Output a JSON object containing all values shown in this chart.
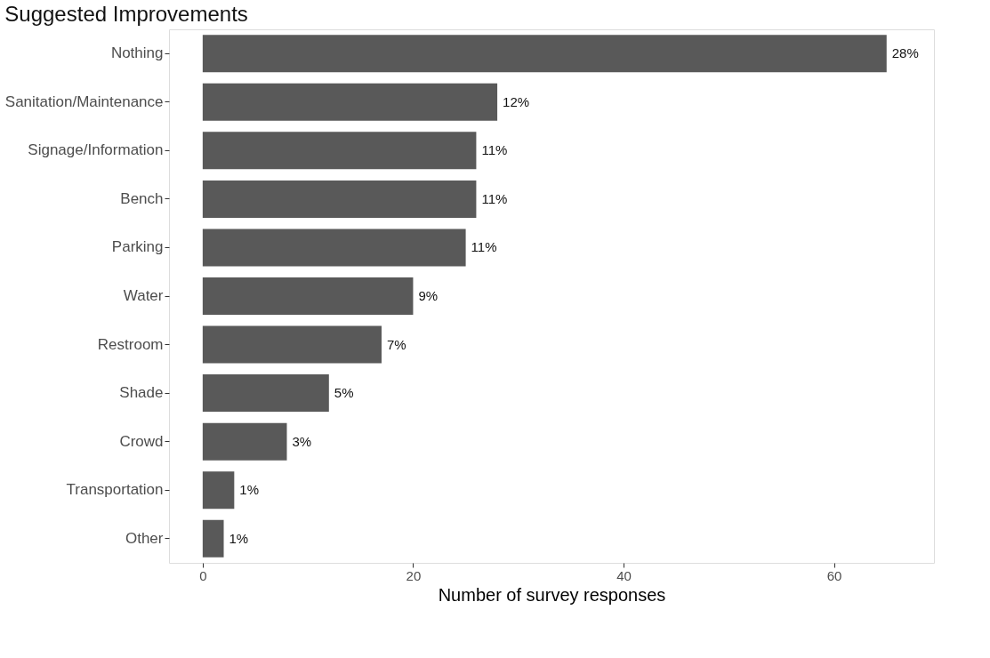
{
  "chart_data": {
    "type": "bar",
    "orientation": "horizontal",
    "title": "Suggested Improvements",
    "xlabel": "Number of survey responses",
    "categories": [
      "Nothing",
      "Sanitation/Maintenance",
      "Signage/Information",
      "Bench",
      "Parking",
      "Water",
      "Restroom",
      "Shade",
      "Crowd",
      "Transportation",
      "Other"
    ],
    "values": [
      65,
      28,
      26,
      26,
      25,
      20,
      17,
      12,
      8,
      3,
      2
    ],
    "annotations": [
      {
        "text": "28%",
        "x": 65,
        "y": "Nothing"
      },
      {
        "text": "12%",
        "x": 28,
        "y": "Sanitation/Maintenance"
      },
      {
        "text": "11%",
        "x": 26,
        "y": "Signage/Information"
      },
      {
        "text": "11%",
        "x": 26,
        "y": "Bench"
      },
      {
        "text": "11%",
        "x": 25,
        "y": "Parking"
      },
      {
        "text": "9%",
        "x": 20,
        "y": "Water"
      },
      {
        "text": "7%",
        "x": 17,
        "y": "Restroom"
      },
      {
        "text": "5%",
        "x": 12,
        "y": "Shade"
      },
      {
        "text": "3%",
        "x": 8,
        "y": "Crowd"
      },
      {
        "text": "1%",
        "x": 3,
        "y": "Transportation"
      },
      {
        "text": "1%",
        "x": 2,
        "y": "Other"
      }
    ],
    "color": "#595959",
    "xlim": [
      -3.2,
      69.5
    ],
    "xticks": [
      0,
      20,
      40,
      60
    ],
    "grid": false
  }
}
